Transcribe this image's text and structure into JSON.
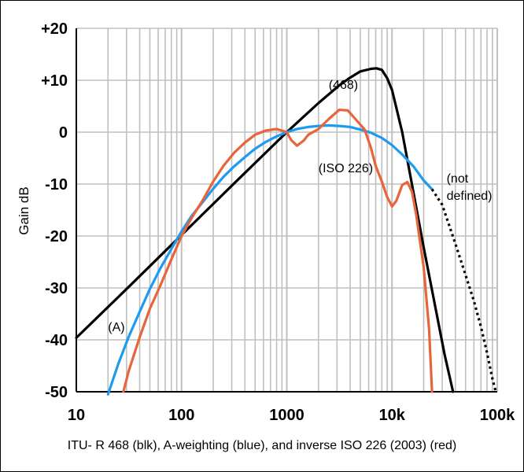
{
  "caption": "ITU- R 468 (blk), A-weighting (blue), and inverse ISO 226 (2003) (red)",
  "colors": {
    "itu468": "#000000",
    "a_weighting": "#1e9bf0",
    "iso226": "#e8643c",
    "grid": "#bfbfbf"
  },
  "chart_data": {
    "type": "line",
    "title": "",
    "xlabel": "",
    "ylabel": "Gain dB",
    "x_scale": "log",
    "xlim": [
      10,
      100000
    ],
    "ylim": [
      -50,
      20
    ],
    "grid": true,
    "x_tick_labels": [
      "10",
      "100",
      "1000",
      "10k",
      "100k"
    ],
    "x_tick_values": [
      10,
      100,
      1000,
      10000,
      100000
    ],
    "y_tick_labels": [
      "+20",
      "+10",
      "0",
      "-10",
      "-20",
      "-30",
      "-40",
      "-50"
    ],
    "y_tick_values": [
      20,
      10,
      0,
      -10,
      -20,
      -30,
      -40,
      -50
    ],
    "series": [
      {
        "key": "itu468",
        "x": [
          10,
          31.5,
          100,
          315,
          1000,
          2000,
          3150,
          4000,
          5000,
          6300,
          7100,
          8000,
          9000,
          10000,
          12500,
          16000,
          20000,
          31500,
          38000
        ],
        "y": [
          -39.6,
          -29.8,
          -19.8,
          -9.9,
          0,
          5.6,
          9.0,
          10.5,
          11.7,
          12.2,
          12.3,
          12.0,
          10.4,
          8.1,
          0,
          -11.7,
          -22.2,
          -42.7,
          -50
        ]
      },
      {
        "key": "a_weighting",
        "x": [
          20,
          25,
          31.5,
          40,
          50,
          63,
          80,
          100,
          125,
          160,
          200,
          250,
          315,
          400,
          500,
          630,
          800,
          1000,
          1250,
          1600,
          2000,
          2500,
          3150,
          4000,
          5000,
          6300,
          8000,
          10000,
          12500,
          16000,
          20000,
          24000
        ],
        "y": [
          -50.5,
          -44.7,
          -39.4,
          -34.6,
          -30.2,
          -26.2,
          -22.5,
          -19.1,
          -16.1,
          -13.4,
          -10.9,
          -8.6,
          -6.6,
          -4.8,
          -3.2,
          -1.9,
          -0.8,
          0,
          0.6,
          1.0,
          1.2,
          1.3,
          1.2,
          1.0,
          0.5,
          -0.1,
          -1.1,
          -2.5,
          -4.3,
          -6.6,
          -9.3,
          -11
        ]
      },
      {
        "key": "iso226",
        "x": [
          28,
          31.5,
          40,
          50,
          63,
          80,
          100,
          125,
          160,
          200,
          250,
          315,
          400,
          500,
          630,
          800,
          1000,
          1100,
          1250,
          1450,
          1600,
          2000,
          2500,
          3150,
          3800,
          4500,
          5500,
          6300,
          7000,
          8000,
          9000,
          10000,
          11000,
          12500,
          14000,
          15500,
          17000,
          20000,
          22500,
          24000
        ],
        "y": [
          -50,
          -46,
          -39.5,
          -34,
          -29.5,
          -24.5,
          -20,
          -16.5,
          -13,
          -9.5,
          -6.5,
          -4,
          -2,
          -0.5,
          0.3,
          0.6,
          0,
          -1.5,
          -2.6,
          -1.6,
          -0.5,
          0.6,
          2.5,
          4.3,
          4.2,
          2.5,
          0.5,
          -3,
          -6.5,
          -9.5,
          -12.5,
          -14.3,
          -13.2,
          -10.2,
          -9.6,
          -11.5,
          -16,
          -26,
          -38,
          -50
        ]
      },
      {
        "key": "not_defined",
        "dashed": true,
        "x": [
          24000,
          30000,
          40000,
          50000,
          60000,
          70000,
          80000,
          90000,
          97000
        ],
        "y": [
          -11,
          -14,
          -21.5,
          -27.5,
          -32.5,
          -37.5,
          -42.5,
          -47.5,
          -50
        ]
      }
    ],
    "annotations": [
      {
        "text": "(468)",
        "x": 2500,
        "y": 8.3
      },
      {
        "text": "(ISO 226)",
        "x": 2000,
        "y": -7.7
      },
      {
        "text": "(not",
        "x": 33000,
        "y": -9.7
      },
      {
        "text": "defined)",
        "x": 33000,
        "y": -13.0
      },
      {
        "text": "(A)",
        "x": 20,
        "y": -38.3
      }
    ]
  }
}
